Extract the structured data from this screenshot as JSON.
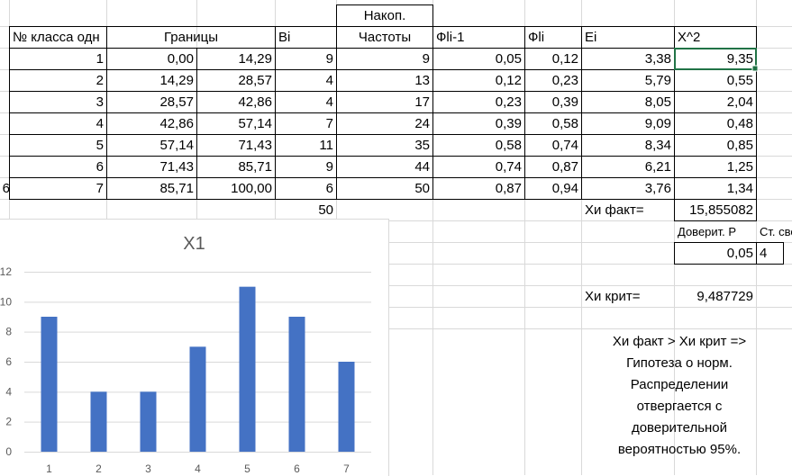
{
  "headers": {
    "class_no": "№ класса одн",
    "bounds": "Границы",
    "bi": "Bi",
    "cum_line1": "Накоп.",
    "cum_line2": "Частоты",
    "phi_prev": "Фli-1",
    "phi": "Фli",
    "ei": "Ei",
    "chi2": "X^2"
  },
  "rows": [
    {
      "n": "1",
      "lo": "0,00",
      "hi": "14,29",
      "bi": "9",
      "cum": "9",
      "phi_prev": "0,05",
      "phi": "0,12",
      "ei": "3,38",
      "chi2": "9,35"
    },
    {
      "n": "2",
      "lo": "14,29",
      "hi": "28,57",
      "bi": "4",
      "cum": "13",
      "phi_prev": "0,12",
      "phi": "0,23",
      "ei": "5,79",
      "chi2": "0,55"
    },
    {
      "n": "3",
      "lo": "28,57",
      "hi": "42,86",
      "bi": "4",
      "cum": "17",
      "phi_prev": "0,23",
      "phi": "0,39",
      "ei": "8,05",
      "chi2": "2,04"
    },
    {
      "n": "4",
      "lo": "42,86",
      "hi": "57,14",
      "bi": "7",
      "cum": "24",
      "phi_prev": "0,39",
      "phi": "0,58",
      "ei": "9,09",
      "chi2": "0,48"
    },
    {
      "n": "5",
      "lo": "57,14",
      "hi": "71,43",
      "bi": "11",
      "cum": "35",
      "phi_prev": "0,58",
      "phi": "0,74",
      "ei": "8,34",
      "chi2": "0,85"
    },
    {
      "n": "6",
      "lo": "71,43",
      "hi": "85,71",
      "bi": "9",
      "cum": "44",
      "phi_prev": "0,74",
      "phi": "0,87",
      "ei": "6,21",
      "chi2": "1,25"
    },
    {
      "n": "7",
      "lo": "85,71",
      "hi": "100,00",
      "bi": "6",
      "cum": "50",
      "phi_prev": "0,87",
      "phi": "0,94",
      "ei": "3,76",
      "chi2": "1,34"
    }
  ],
  "stray_left": "6",
  "bi_total": "50",
  "chi_fact_label": "Хи факт=",
  "chi_fact_value": "15,855082",
  "conf_p_label": "Доверит. Р",
  "df_label": "Ст. сво",
  "conf_p_value": "0,05",
  "df_value": "4",
  "chi_crit_label": "Хи крит=",
  "chi_crit_value": "9,487729",
  "conclusion": [
    "Хи факт >  Хи крит =>",
    "Гипотеза о норм.",
    "Распределении",
    "отвергается с",
    "доверительной",
    "вероятностью 95%."
  ],
  "chart_data": {
    "type": "bar",
    "title": "X1",
    "categories": [
      "1",
      "2",
      "3",
      "4",
      "5",
      "6",
      "7"
    ],
    "values": [
      9,
      4,
      4,
      7,
      11,
      9,
      6
    ],
    "ylim": [
      0,
      12
    ],
    "yticks": [
      "0",
      "2",
      "4",
      "6",
      "8",
      "10",
      "12"
    ],
    "bar_color": "#4472c4",
    "grid": true
  },
  "colors": {
    "gridline": "#d9d9d9",
    "selection": "#217346"
  }
}
